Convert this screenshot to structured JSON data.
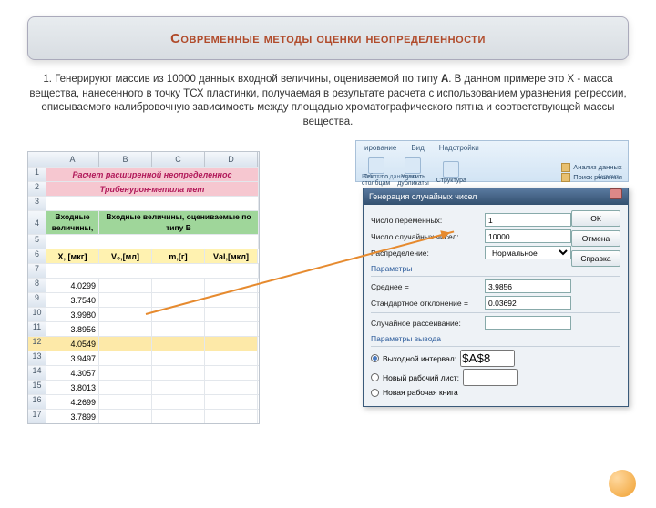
{
  "title": "Современные методы оценки неопределенности",
  "paragraph_prefix": "1. Генерируют массив из 10000 данных входной величины, оцениваемой по типу ",
  "paragraph_bold": "А",
  "paragraph_suffix": ". В данном примере это X - масса вещества, нанесенного в точку ТСХ пластинки, получаемая в результате расчета с использованием уравнения регрессии, описываемого калибровочную зависимость между площадью хроматографического пятна и соответствующей массы вещества.",
  "sheet": {
    "cols": [
      "A",
      "B",
      "C",
      "D"
    ],
    "banner1": "Расчет расширенной неопределеннос",
    "banner2": "Трибенурон-метила мет",
    "head_green1": "Входные величины,",
    "head_green2": "Входные величины, оцениваемые по типу В",
    "sub": [
      "X, [мкг]",
      "V₀,[мл]",
      "m,[г]",
      "Vаl,[мкл]"
    ],
    "rows": [
      {
        "n": "8",
        "v": "4.0299"
      },
      {
        "n": "9",
        "v": "3.7540"
      },
      {
        "n": "10",
        "v": "3.9980"
      },
      {
        "n": "11",
        "v": "3.8956"
      },
      {
        "n": "12",
        "v": "4.0549",
        "hl": true
      },
      {
        "n": "13",
        "v": "3.9497"
      },
      {
        "n": "14",
        "v": "4.3057"
      },
      {
        "n": "15",
        "v": "3.8013"
      },
      {
        "n": "16",
        "v": "4.2699"
      },
      {
        "n": "17",
        "v": "3.7899"
      }
    ]
  },
  "ribbon": {
    "tabs": [
      "ирование",
      "Вид",
      "Надстройки"
    ],
    "btns": [
      {
        "t1": "Текст по",
        "t2": "столбцам"
      },
      {
        "t1": "Удалить",
        "t2": "дубликаты"
      }
    ],
    "struct": "Структура",
    "right": [
      "Анализ данных",
      "Поиск решения"
    ],
    "grp1": "Работа с данными",
    "grp3": "Анализ"
  },
  "dialog": {
    "title": "Генерация случайных чисел",
    "fields": {
      "var_count_label": "Число переменных:",
      "var_count_value": "1",
      "rand_count_label": "Число случайных чисел:",
      "rand_count_value": "10000",
      "dist_label": "Распределение:",
      "dist_value": "Нормальное"
    },
    "section_params": "Параметры",
    "mean_label": "Среднее =",
    "mean_value": "3.9856",
    "std_label": "Стандартное отклонение =",
    "std_value": "0.03692",
    "seed_label": "Случайное рассеивание:",
    "section_output": "Параметры вывода",
    "out_interval_label": "Выходной интервал:",
    "out_interval_value": "$A$8",
    "out_newsheet": "Новый рабочий лист:",
    "out_newbook": "Новая рабочая книга",
    "btn_ok": "ОК",
    "btn_cancel": "Отмена",
    "btn_help": "Справка"
  }
}
